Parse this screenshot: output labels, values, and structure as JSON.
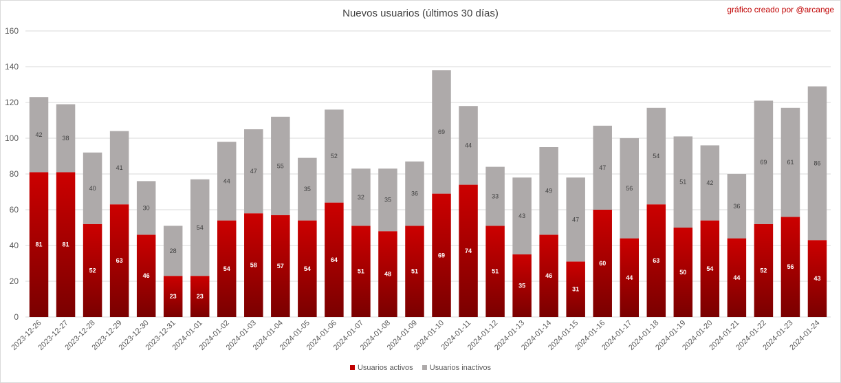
{
  "header": {
    "title": "Nuevos usuarios (últimos 30 días)",
    "credit": "gráfico creado por @arcange"
  },
  "colors": {
    "active_top": "#cc0000",
    "active_bottom": "#7a0000",
    "inactive": "#aeaaaa",
    "grid": "#d9d9d9"
  },
  "legend": {
    "active_label": "Usuarios activos",
    "inactive_label": "Usuarios inactivos"
  },
  "chart_data": {
    "type": "bar",
    "stacked": true,
    "title": "Nuevos usuarios (últimos 30 días)",
    "xlabel": "",
    "ylabel": "",
    "ylim": [
      0,
      160
    ],
    "yticks": [
      0,
      20,
      40,
      60,
      80,
      100,
      120,
      140,
      160
    ],
    "grid": true,
    "legend_position": "bottom",
    "categories": [
      "2023-12-26",
      "2023-12-27",
      "2023-12-28",
      "2023-12-29",
      "2023-12-30",
      "2023-12-31",
      "2024-01-01",
      "2024-01-02",
      "2024-01-03",
      "2024-01-04",
      "2024-01-05",
      "2024-01-06",
      "2024-01-07",
      "2024-01-08",
      "2024-01-09",
      "2024-01-10",
      "2024-01-11",
      "2024-01-12",
      "2024-01-13",
      "2024-01-14",
      "2024-01-15",
      "2024-01-16",
      "2024-01-17",
      "2024-01-18",
      "2024-01-19",
      "2024-01-20",
      "2024-01-21",
      "2024-01-22",
      "2024-01-23",
      "2024-01-24"
    ],
    "series": [
      {
        "name": "Usuarios activos",
        "values": [
          81,
          81,
          52,
          63,
          46,
          23,
          23,
          54,
          58,
          57,
          54,
          64,
          51,
          48,
          51,
          69,
          74,
          51,
          35,
          46,
          31,
          60,
          44,
          63,
          50,
          54,
          44,
          52,
          56,
          43
        ]
      },
      {
        "name": "Usuarios inactivos",
        "values": [
          42,
          38,
          40,
          41,
          30,
          28,
          54,
          44,
          47,
          55,
          35,
          52,
          32,
          35,
          36,
          69,
          44,
          33,
          43,
          49,
          47,
          47,
          56,
          54,
          51,
          42,
          36,
          69,
          61,
          86
        ]
      }
    ]
  }
}
